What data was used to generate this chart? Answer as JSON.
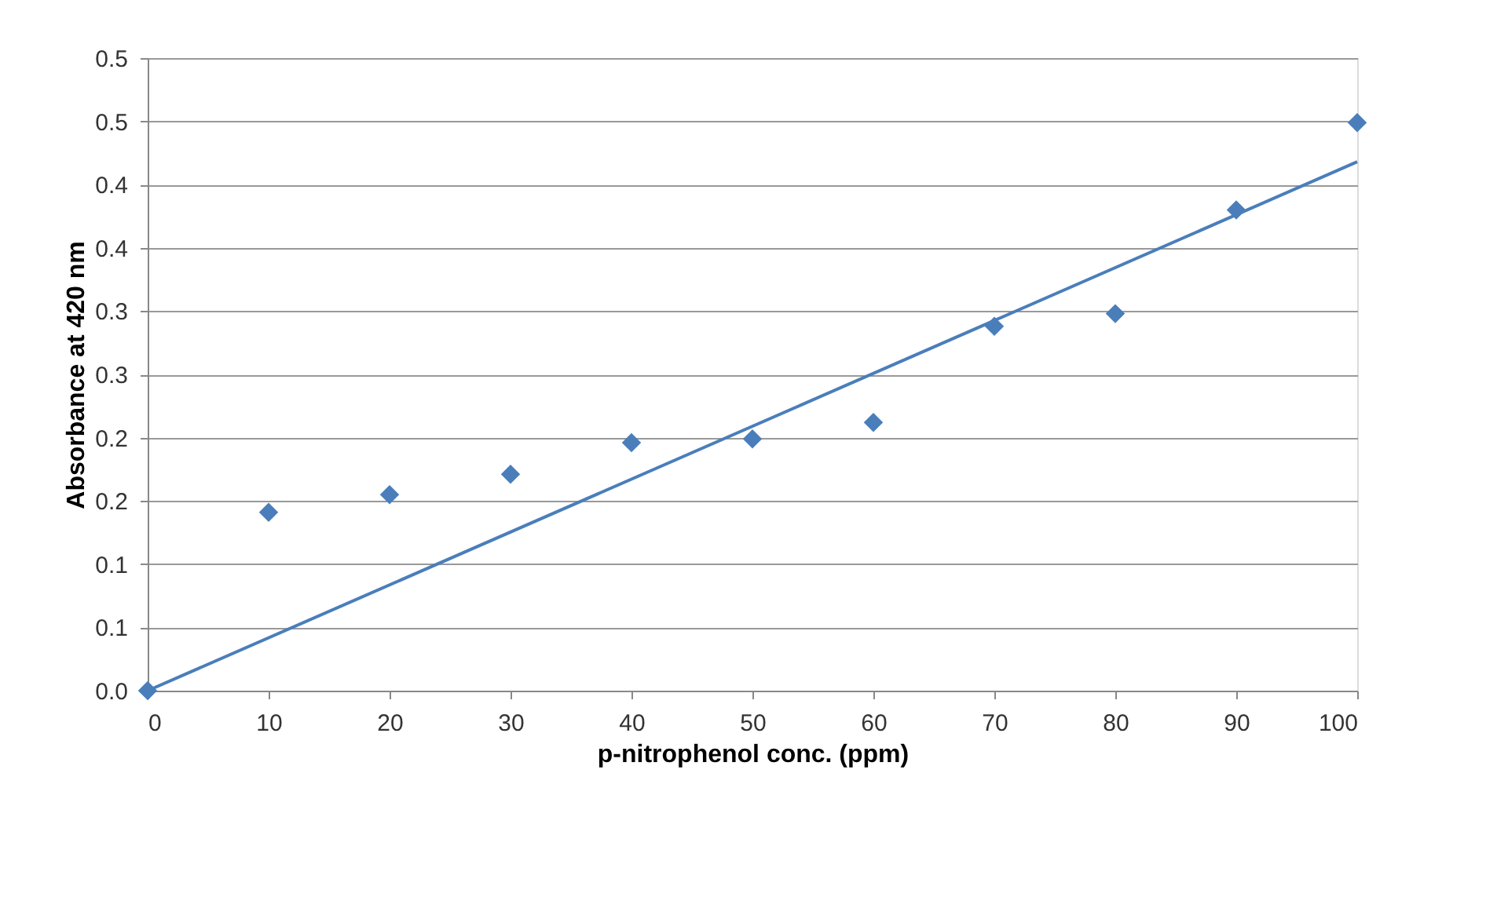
{
  "chart_data": {
    "type": "scatter",
    "xlabel": "p-nitrophenol  conc. (ppm)",
    "ylabel": "Absorbance at 420 nm",
    "xlim": [
      0,
      100
    ],
    "xticks": [
      0,
      10,
      20,
      30,
      40,
      50,
      60,
      70,
      80,
      90,
      100
    ],
    "ylim": [
      0,
      0.5
    ],
    "yticks": [
      {
        "value": 0,
        "label": "0.0"
      },
      {
        "value": 0.05,
        "label": "0.1"
      },
      {
        "value": 0.1,
        "label": "0.1"
      },
      {
        "value": 0.15,
        "label": "0.2"
      },
      {
        "value": 0.2,
        "label": "0.2"
      },
      {
        "value": 0.25,
        "label": "0.3"
      },
      {
        "value": 0.3,
        "label": "0.3"
      },
      {
        "value": 0.35,
        "label": "0.4"
      },
      {
        "value": 0.4,
        "label": "0.4"
      },
      {
        "value": 0.45,
        "label": "0.5"
      },
      {
        "value": 0.5,
        "label": "0.5"
      }
    ],
    "grid": "y",
    "marker": "diamond",
    "series": [
      {
        "color": "#4a7ebb",
        "x": [
          0,
          10,
          20,
          30,
          40,
          50,
          60,
          70,
          80,
          90,
          100
        ],
        "values": [
          0,
          0.141,
          0.155,
          0.171,
          0.196,
          0.199,
          0.212,
          0.288,
          0.298,
          0.38,
          0.449
        ]
      },
      {
        "type": "line",
        "marker": "none",
        "line_style": "solid",
        "color": "#4a7ebb",
        "x": [
          0,
          100
        ],
        "values": [
          0,
          0.418
        ]
      }
    ]
  }
}
